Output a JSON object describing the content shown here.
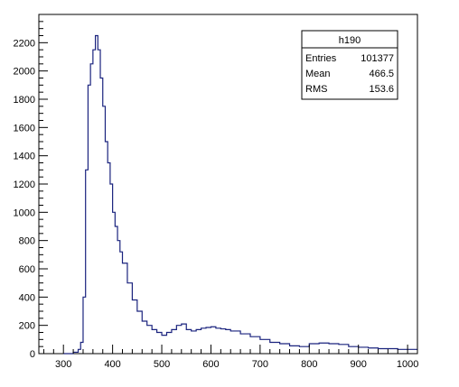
{
  "chart_data": {
    "type": "histogram",
    "title": "",
    "xlabel": "",
    "ylabel": "",
    "xlim": [
      250,
      1020
    ],
    "ylim": [
      0,
      2400
    ],
    "x_ticks": [
      300,
      400,
      500,
      600,
      700,
      800,
      900,
      1000
    ],
    "y_ticks": [
      0,
      200,
      400,
      600,
      800,
      1000,
      1200,
      1400,
      1600,
      1800,
      2000,
      2200
    ],
    "grid": false,
    "line_color": "#1a237e",
    "series": [
      {
        "x": [
          300,
          310,
          320,
          330,
          335,
          340,
          345,
          350,
          355,
          360,
          365,
          370,
          375,
          380,
          385,
          390,
          395,
          400,
          405,
          410,
          415,
          420,
          430,
          440,
          450,
          460,
          470,
          480,
          490,
          500,
          510,
          520,
          530,
          540,
          550,
          560,
          570,
          580,
          590,
          600,
          610,
          620,
          630,
          640,
          660,
          680,
          700,
          720,
          740,
          760,
          780,
          800,
          820,
          840,
          860,
          880,
          900,
          920,
          940,
          960,
          980,
          1000,
          1020
        ],
        "y": [
          0,
          0,
          10,
          30,
          80,
          400,
          1300,
          1900,
          2050,
          2150,
          2250,
          2150,
          1950,
          1750,
          1500,
          1350,
          1200,
          1000,
          900,
          800,
          720,
          640,
          500,
          380,
          300,
          230,
          200,
          170,
          150,
          130,
          150,
          170,
          200,
          210,
          170,
          160,
          170,
          180,
          185,
          190,
          180,
          175,
          170,
          160,
          140,
          120,
          100,
          80,
          70,
          55,
          50,
          70,
          75,
          70,
          65,
          50,
          45,
          40,
          35,
          35,
          30,
          30,
          30
        ]
      }
    ]
  },
  "stats_box": {
    "title": "h190",
    "rows": [
      {
        "label": "Entries",
        "value": "101377"
      },
      {
        "label": "Mean",
        "value": "466.5"
      },
      {
        "label": "RMS",
        "value": "153.6"
      }
    ]
  }
}
